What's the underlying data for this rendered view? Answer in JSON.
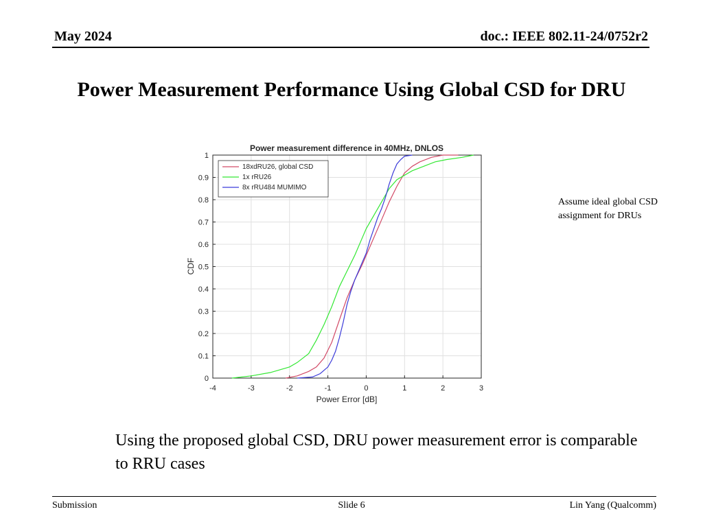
{
  "header": {
    "date": "May 2024",
    "doc": "doc.: IEEE 802.11-24/0752r2"
  },
  "slide_title": "Power Measurement Performance Using Global CSD for DRU",
  "note": "Assume ideal global CSD assignment for DRUs",
  "body_text": "Using the proposed global CSD, DRU power measurement error is comparable to RRU cases",
  "footer": {
    "left": "Submission",
    "center": "Slide 6",
    "right": "Lin Yang (Qualcomm)"
  },
  "colors": {
    "series1": "#d24a67",
    "series2": "#33e833",
    "series3": "#3b3bd9",
    "grid": "#e0e0e0",
    "axis": "#262626"
  },
  "chart_data": {
    "type": "line",
    "title": "Power measurement difference in 40MHz, DNLOS",
    "xlabel": "Power Error [dB]",
    "ylabel": "CDF",
    "xlim": [
      -4,
      3
    ],
    "ylim": [
      0,
      1
    ],
    "xticks": [
      -4,
      -3,
      -2,
      -1,
      0,
      1,
      2,
      3
    ],
    "yticks": [
      0,
      0.1,
      0.2,
      0.3,
      0.4,
      0.5,
      0.6,
      0.7,
      0.8,
      0.9,
      1
    ],
    "grid": true,
    "legend_position": "top-left",
    "series": [
      {
        "name": "18xdRU26, global CSD",
        "color": "#d24a67",
        "x": [
          -2.1,
          -1.8,
          -1.5,
          -1.3,
          -1.1,
          -0.9,
          -0.7,
          -0.5,
          -0.3,
          -0.1,
          0.0,
          0.2,
          0.4,
          0.6,
          0.8,
          1.0,
          1.2,
          1.4,
          1.7,
          2.0,
          2.4
        ],
        "y": [
          0.0,
          0.01,
          0.03,
          0.05,
          0.09,
          0.16,
          0.26,
          0.36,
          0.44,
          0.51,
          0.55,
          0.63,
          0.71,
          0.79,
          0.86,
          0.92,
          0.95,
          0.97,
          0.99,
          1.0,
          1.0
        ]
      },
      {
        "name": "1x rRU26",
        "color": "#33e833",
        "x": [
          -3.5,
          -3.0,
          -2.5,
          -2.0,
          -1.8,
          -1.5,
          -1.3,
          -1.1,
          -0.9,
          -0.7,
          -0.5,
          -0.3,
          -0.1,
          0.0,
          0.2,
          0.4,
          0.6,
          0.8,
          1.0,
          1.2,
          1.5,
          1.8,
          2.1,
          2.5,
          2.8
        ],
        "y": [
          0.0,
          0.01,
          0.025,
          0.05,
          0.07,
          0.11,
          0.17,
          0.24,
          0.32,
          0.41,
          0.48,
          0.55,
          0.63,
          0.67,
          0.73,
          0.79,
          0.85,
          0.89,
          0.91,
          0.93,
          0.95,
          0.97,
          0.98,
          0.99,
          1.0
        ]
      },
      {
        "name": "8x rRU484 MUMIMO",
        "color": "#3b3bd9",
        "x": [
          -1.8,
          -1.4,
          -1.2,
          -1.0,
          -0.9,
          -0.8,
          -0.7,
          -0.6,
          -0.5,
          -0.4,
          -0.3,
          -0.2,
          -0.1,
          0.0,
          0.1,
          0.2,
          0.3,
          0.4,
          0.5,
          0.6,
          0.7,
          0.8,
          0.9,
          1.0,
          1.2
        ],
        "y": [
          0.0,
          0.005,
          0.02,
          0.05,
          0.08,
          0.12,
          0.18,
          0.25,
          0.33,
          0.39,
          0.44,
          0.48,
          0.52,
          0.56,
          0.62,
          0.67,
          0.72,
          0.76,
          0.81,
          0.87,
          0.92,
          0.96,
          0.98,
          0.995,
          1.0
        ]
      }
    ]
  }
}
